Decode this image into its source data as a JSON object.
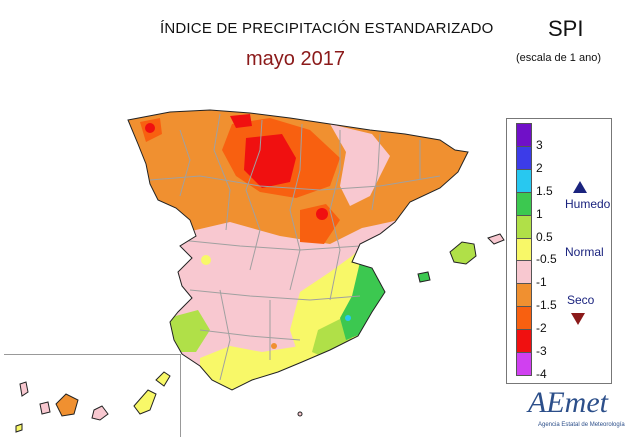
{
  "header": {
    "title": "ÍNDICE DE PRECIPITACIÓN ESTANDARIZADO",
    "subtitle": "mayo 2017",
    "index_name": "SPI",
    "scale_note": "(escala de 1 ano)"
  },
  "legend": {
    "ticks": [
      "3",
      "2",
      "1.5",
      "1",
      "0.5",
      "-0.5",
      "-1",
      "-1.5",
      "-2",
      "-3",
      "-4"
    ],
    "colors": [
      "#7010c8",
      "#3c3ce8",
      "#28c8f0",
      "#3cc850",
      "#b0e048",
      "#f8f868",
      "#f8c8d0",
      "#f09030",
      "#f86010",
      "#f01010",
      "#d040f0"
    ],
    "labels": {
      "wet": "Humedo",
      "normal": "Normal",
      "dry": "Seco"
    },
    "wet_color": "#1a237e",
    "dry_color": "#8b1a1a"
  },
  "logo": {
    "text": "AEmet",
    "subtext": "Agencia Estatal de Meteorología"
  }
}
